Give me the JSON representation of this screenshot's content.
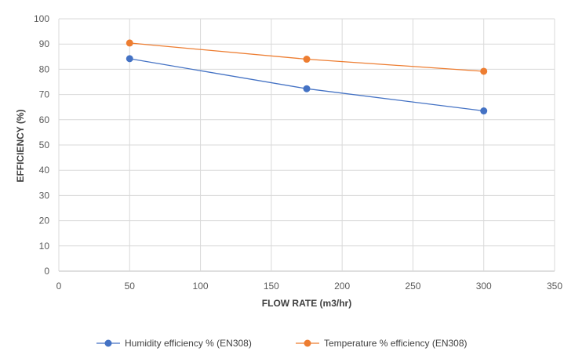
{
  "chart_data": {
    "type": "scatter",
    "title": "",
    "xlabel": "FLOW RATE (m3/hr)",
    "ylabel": "EFFICIENCY (%)",
    "xlim": [
      0,
      350
    ],
    "ylim": [
      0,
      100
    ],
    "xticks": [
      0,
      50,
      100,
      150,
      200,
      250,
      300,
      350
    ],
    "yticks": [
      0,
      10,
      20,
      30,
      40,
      50,
      60,
      70,
      80,
      90,
      100
    ],
    "grid": true,
    "legend_position": "bottom",
    "series": [
      {
        "name": "Humidity efficiency % (EN308)",
        "color": "#4472C4",
        "x": [
          50,
          175,
          300
        ],
        "y": [
          84.2,
          72.3,
          63.5
        ]
      },
      {
        "name": "Temperature % efficiency (EN308)",
        "color": "#ED7D31",
        "x": [
          50,
          175,
          300
        ],
        "y": [
          90.4,
          84.0,
          79.2
        ]
      }
    ]
  }
}
